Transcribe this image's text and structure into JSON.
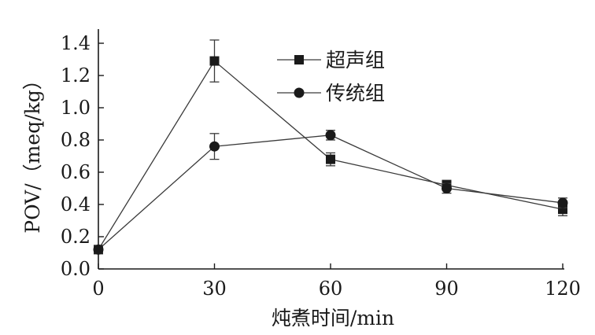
{
  "chart_data": {
    "type": "line",
    "xlabel": "炖煮时间/min",
    "ylabel": "POV/（meq/kg）",
    "x": [
      0,
      30,
      60,
      90,
      120
    ],
    "xticks": [
      "0",
      "30",
      "60",
      "90",
      "120"
    ],
    "xlim": [
      0,
      120
    ],
    "ylim": [
      0,
      1.4
    ],
    "yticks": [
      "0.0",
      "0.2",
      "0.4",
      "0.6",
      "0.8",
      "1.0",
      "1.2",
      "1.4"
    ],
    "grid": false,
    "legend_position": "top-center",
    "series": [
      {
        "name": "超声组",
        "marker": "square",
        "values": [
          0.12,
          1.29,
          0.68,
          0.52,
          0.37
        ],
        "errors": [
          0.02,
          0.13,
          0.04,
          0.03,
          0.04
        ]
      },
      {
        "name": "传统组",
        "marker": "circle",
        "values": [
          0.12,
          0.76,
          0.83,
          0.5,
          0.41
        ],
        "errors": [
          0.02,
          0.08,
          0.03,
          0.03,
          0.03
        ]
      }
    ],
    "colors": {
      "series": "#3a3a3a",
      "axis": "#1a1a1a",
      "marker": "#1a1a1a"
    }
  }
}
